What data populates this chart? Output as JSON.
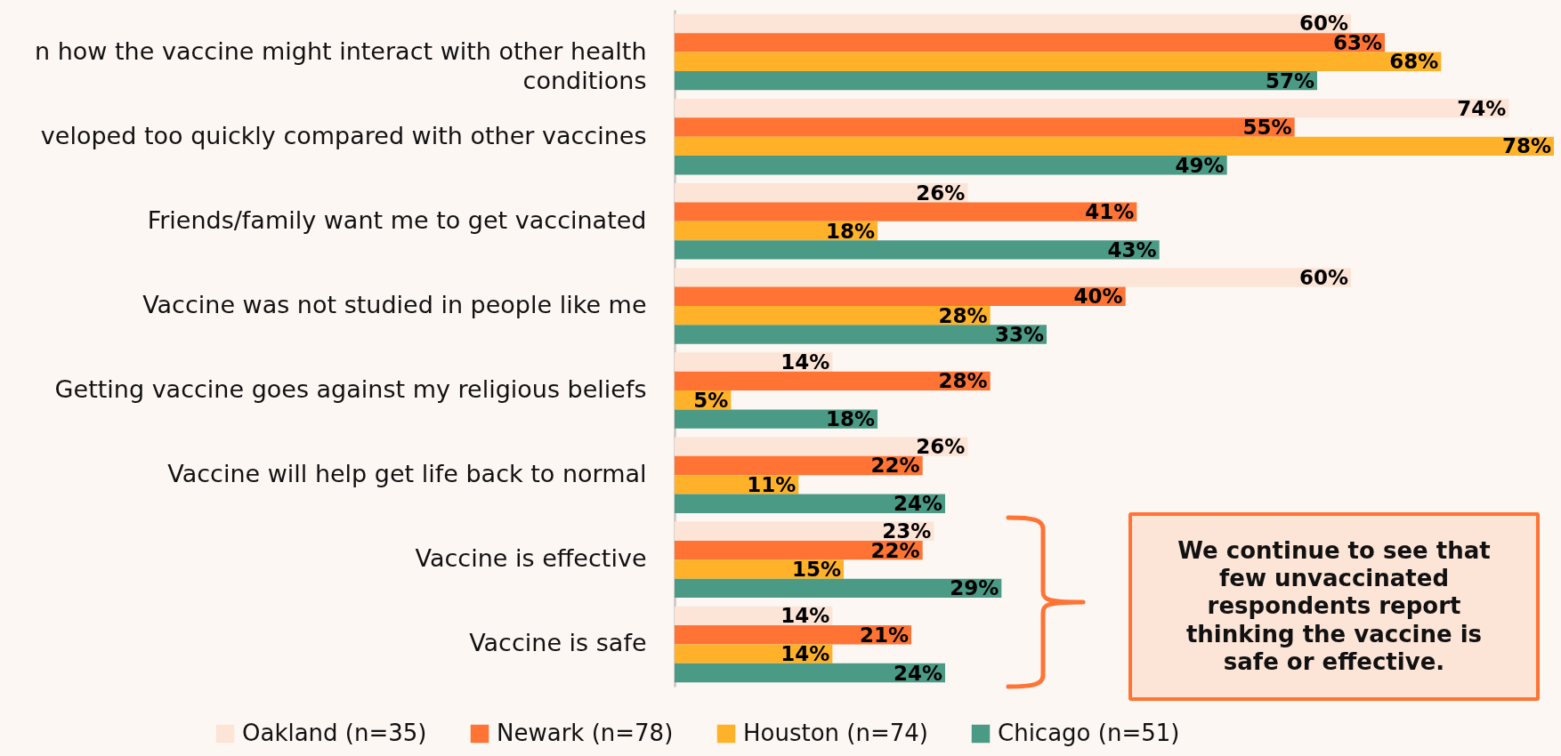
{
  "chart_data": {
    "type": "bar",
    "orientation": "horizontal",
    "categories": [
      "n how the vaccine might interact with other health conditions",
      "veloped too quickly compared with other vaccines",
      "Friends/family want me to get vaccinated",
      "Vaccine was not studied in people like me",
      "Getting vaccine goes against my religious beliefs",
      "Vaccine will help get life back to normal",
      "Vaccine is effective",
      "Vaccine is safe"
    ],
    "series": [
      {
        "name": "Oakland (n=35)",
        "color": "#fce4d6",
        "values": [
          60,
          74,
          26,
          60,
          14,
          26,
          23,
          14
        ],
        "value_labels": [
          "60%",
          "74%",
          "26%",
          "60%",
          "14%",
          "26%",
          "23%",
          "14%"
        ]
      },
      {
        "name": "Newark (n=78)",
        "color": "#ff7435",
        "values": [
          63,
          55,
          41,
          40,
          28,
          22,
          22,
          21
        ],
        "value_labels": [
          "63%",
          "55%",
          "41%",
          "40%",
          "28%",
          "22%",
          "22%",
          "21%"
        ]
      },
      {
        "name": "Houston (n=74)",
        "color": "#ffb229",
        "values": [
          68,
          78,
          18,
          28,
          5,
          11,
          15,
          14
        ],
        "value_labels": [
          "68%",
          "78%",
          "18%",
          "28%",
          "5%",
          "11%",
          "15%",
          "14%"
        ]
      },
      {
        "name": "Chicago (n=51)",
        "color": "#4a9a85",
        "values": [
          57,
          49,
          43,
          33,
          18,
          24,
          29,
          24
        ],
        "value_labels": [
          "57%",
          "49%",
          "43%",
          "33%",
          "18%",
          "24%",
          "29%",
          "24%"
        ]
      }
    ],
    "legend": "bottom",
    "tick_labels": "y",
    "annotations": [
      "We continue to see that few unvaccinated respondents report thinking the vaccine is safe or effective."
    ]
  }
}
